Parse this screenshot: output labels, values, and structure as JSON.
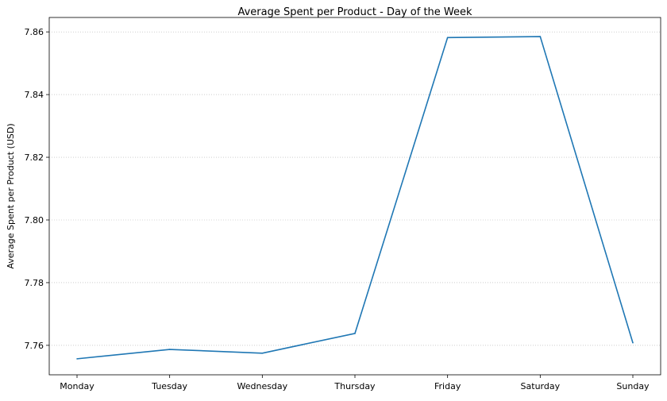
{
  "chart_data": {
    "type": "line",
    "title": "Average Spent per Product - Day of the Week",
    "xlabel": "",
    "ylabel": "Average Spent per Product (USD)",
    "categories": [
      "Monday",
      "Tuesday",
      "Wednesday",
      "Thursday",
      "Friday",
      "Saturday",
      "Sunday"
    ],
    "series": [
      {
        "name": "Average Spent per Product",
        "color": "#1f77b4",
        "values": [
          7.7557,
          7.7587,
          7.7575,
          7.7638,
          7.8582,
          7.8585,
          7.7608
        ]
      }
    ],
    "ylim": [
      7.7506,
      7.8646
    ],
    "yticks": [
      7.76,
      7.78,
      7.8,
      7.82,
      7.84,
      7.86
    ],
    "ytick_labels": [
      "7.76",
      "7.78",
      "7.80",
      "7.82",
      "7.84",
      "7.86"
    ],
    "grid": "y-dotted"
  }
}
